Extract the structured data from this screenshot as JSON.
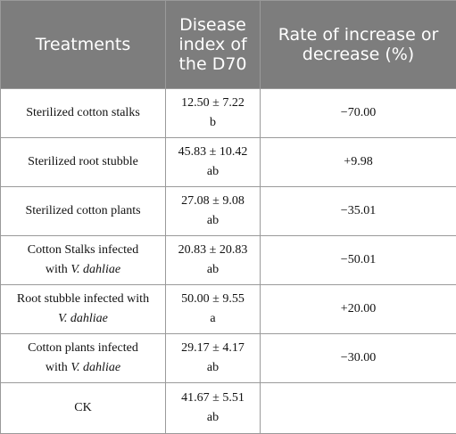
{
  "header": {
    "treatments": "Treatments",
    "disease_index": [
      "Disease",
      "index",
      "of the",
      "D70"
    ],
    "rate": [
      "Rate of increase or",
      "decrease (%)"
    ]
  },
  "rows": [
    {
      "treatment": [
        "Sterilized cotton stalks"
      ],
      "index": [
        "12.50 ± 7.22",
        "b"
      ],
      "rate": "−70.00"
    },
    {
      "treatment": [
        "Sterilized root stubble"
      ],
      "index": [
        "45.83 ± 10.42",
        "ab"
      ],
      "rate": "+9.98"
    },
    {
      "treatment": [
        "Sterilized cotton plants"
      ],
      "index": [
        "27.08 ± 9.08",
        "ab"
      ],
      "rate": "−35.01"
    },
    {
      "treatment": [
        "Cotton Stalks infected",
        "with ",
        "V. dahliae"
      ],
      "index": [
        "20.83 ± 20.83",
        "ab"
      ],
      "rate": "−50.01"
    },
    {
      "treatment": [
        "Root stubble infected with",
        "",
        "V. dahliae"
      ],
      "index": [
        "50.00 ± 9.55",
        "a"
      ],
      "rate": "+20.00"
    },
    {
      "treatment": [
        "Cotton plants infected",
        "with ",
        "V. dahliae"
      ],
      "index": [
        "29.17 ± 4.17",
        "ab"
      ],
      "rate": "−30.00"
    },
    {
      "treatment": [
        "CK"
      ],
      "index": [
        "41.67 ± 5.51",
        "ab"
      ],
      "rate": ""
    }
  ]
}
